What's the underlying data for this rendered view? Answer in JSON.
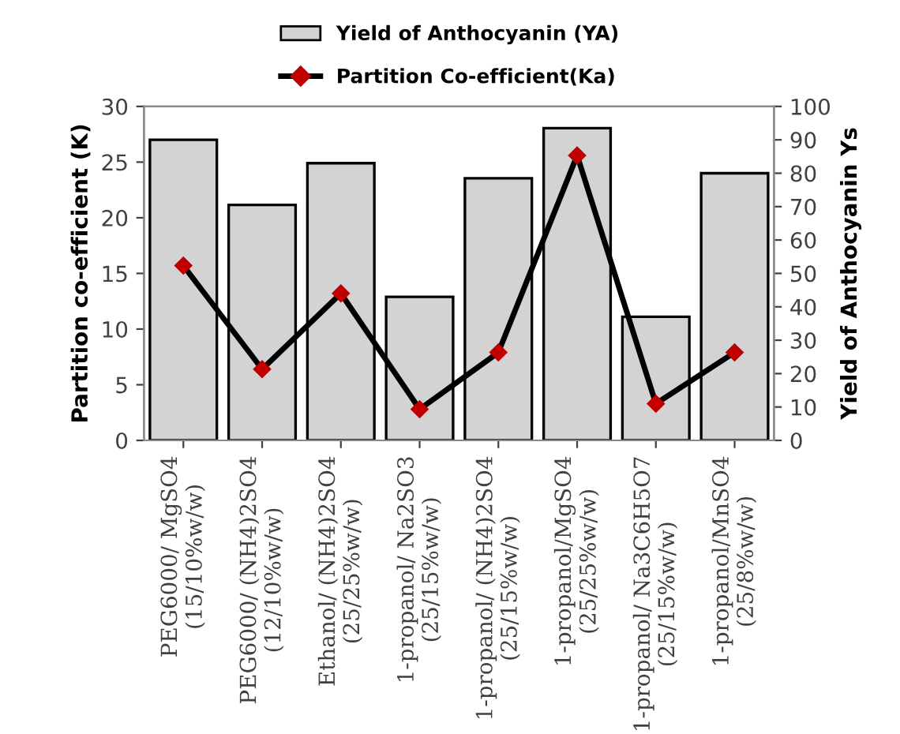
{
  "chart_data": {
    "type": "bar",
    "ylabel": "Partition co-efficient (K)",
    "y2label": "Yield of Anthocyanin Ys",
    "categories": [
      "PEG6000/ MgSO4\n(15/10%w/w)",
      "PEG6000/ (NH4)2SO4\n(12/10%w/w)",
      "Ethanol/ (NH4)2SO4\n(25/25%w/w)",
      "1-propanol/ Na2SO3\n(25/15%w/w)",
      "1-propanol/ (NH4)2SO4\n(25/15%w/w)",
      "1-propanol/MgSO4\n(25/25%w/w)",
      "1-propanol/ Na3C6H5O7\n(25/15%w/w)",
      "1-propanol/MnSO4\n(25/8%w/w)"
    ],
    "series": [
      {
        "name": "Yield of Anthocyanin (YA)",
        "axis": "y2",
        "color": "#d3d3d3",
        "values": [
          90,
          70.5,
          83,
          43,
          78.5,
          93.5,
          37,
          80
        ]
      },
      {
        "name": "Partition Co-efficient(Ka)",
        "type": "line",
        "color": "#000000",
        "marker": "diamond",
        "values": [
          15.7,
          6.4,
          13.2,
          2.8,
          7.9,
          25.6,
          3.3,
          7.9
        ]
      }
    ],
    "ylim": [
      0,
      30
    ],
    "yticks": [
      0,
      5,
      10,
      15,
      20,
      25,
      30
    ],
    "y2lim": [
      0,
      100
    ],
    "y2ticks": [
      0,
      10,
      20,
      30,
      40,
      50,
      60,
      70,
      80,
      90,
      100
    ],
    "legend": "top",
    "grid": false
  }
}
